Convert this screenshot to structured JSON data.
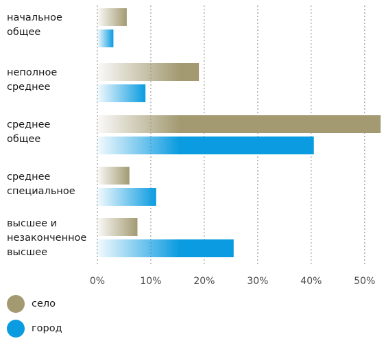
{
  "chart_data": {
    "type": "bar",
    "orientation": "horizontal",
    "categories": [
      [
        "начальное",
        "общее"
      ],
      [
        "неполное",
        "среднее"
      ],
      [
        "среднее",
        "общее"
      ],
      [
        "среднее",
        "специальное"
      ],
      [
        "высшее и",
        "незаконченное",
        "высшее"
      ]
    ],
    "series": [
      {
        "name": "село",
        "color": "#a39a72",
        "values": [
          5.5,
          19,
          53,
          6,
          7.5
        ]
      },
      {
        "name": "город",
        "color": "#0a9be0",
        "values": [
          3,
          9,
          40.5,
          11,
          25.5
        ]
      }
    ],
    "xlim": [
      0,
      54
    ],
    "xticks": [
      0,
      10,
      20,
      30,
      40,
      50
    ],
    "xtick_labels": [
      "0%",
      "10%",
      "20%",
      "30%",
      "40%",
      "50%"
    ],
    "grid": "vertical-dotted",
    "legend_position": "bottom-left"
  }
}
